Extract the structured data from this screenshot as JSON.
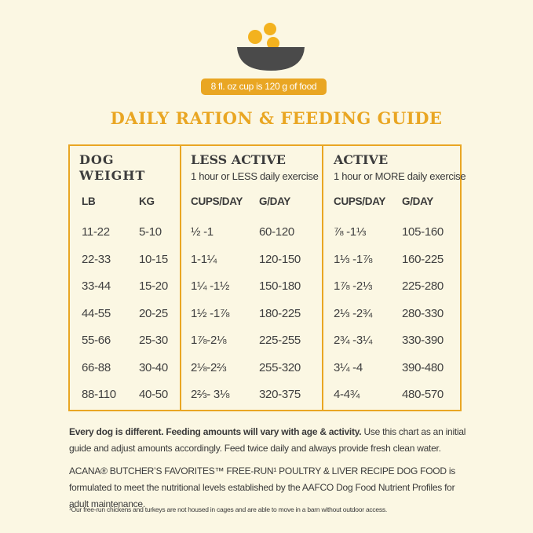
{
  "badge": "8 fl. oz cup is 120 g of food",
  "title": "DAILY RATION & FEEDING GUIDE",
  "table": {
    "groups": [
      {
        "title": "DOG WEIGHT"
      },
      {
        "title": "LESS ACTIVE",
        "subtitle": "1 hour or LESS daily exercise"
      },
      {
        "title": "ACTIVE",
        "subtitle": "1 hour or MORE daily exercise"
      }
    ],
    "columns": [
      "LB",
      "KG",
      "CUPS/DAY",
      "G/DAY",
      "CUPS/DAY",
      "G/DAY"
    ],
    "rows": [
      [
        "11-22",
        "5-10",
        "½ -1",
        "60-120",
        "⅞ -1⅓",
        "105-160"
      ],
      [
        "22-33",
        "10-15",
        "1-1¼",
        "120-150",
        "1⅓ -1⅞",
        "160-225"
      ],
      [
        "33-44",
        "15-20",
        "1¼ -1½",
        "150-180",
        "1⅞ -2⅓",
        "225-280"
      ],
      [
        "44-55",
        "20-25",
        "1½ -1⅞",
        "180-225",
        "2⅓ -2¾",
        "280-330"
      ],
      [
        "55-66",
        "25-30",
        "1⅞-2⅛",
        "225-255",
        "2¾ -3¼",
        "330-390"
      ],
      [
        "66-88",
        "30-40",
        "2⅛-2⅔",
        "255-320",
        "3¼ -4",
        "390-480"
      ],
      [
        "88-110",
        "40-50",
        "2⅔- 3⅛",
        "320-375",
        "4-4¾",
        "480-570"
      ]
    ]
  },
  "notes": {
    "p1_bold": "Every dog is different. Feeding amounts will vary with age & activity.",
    "p1_rest": "Use this chart as an initial guide and adjust amounts accordingly. Feed twice daily and always provide fresh clean water.",
    "p2": "ACANA® BUTCHER’S FAVORITES™ FREE-RUN¹ POULTRY & LIVER RECIPE DOG FOOD is formulated to meet the nutritional levels established by the AAFCO Dog Food Nutrient Profiles for adult maintenance.",
    "footnote": "¹Our free-run chickens and turkeys are not housed in cages and are able to move in a barn without outdoor access."
  }
}
